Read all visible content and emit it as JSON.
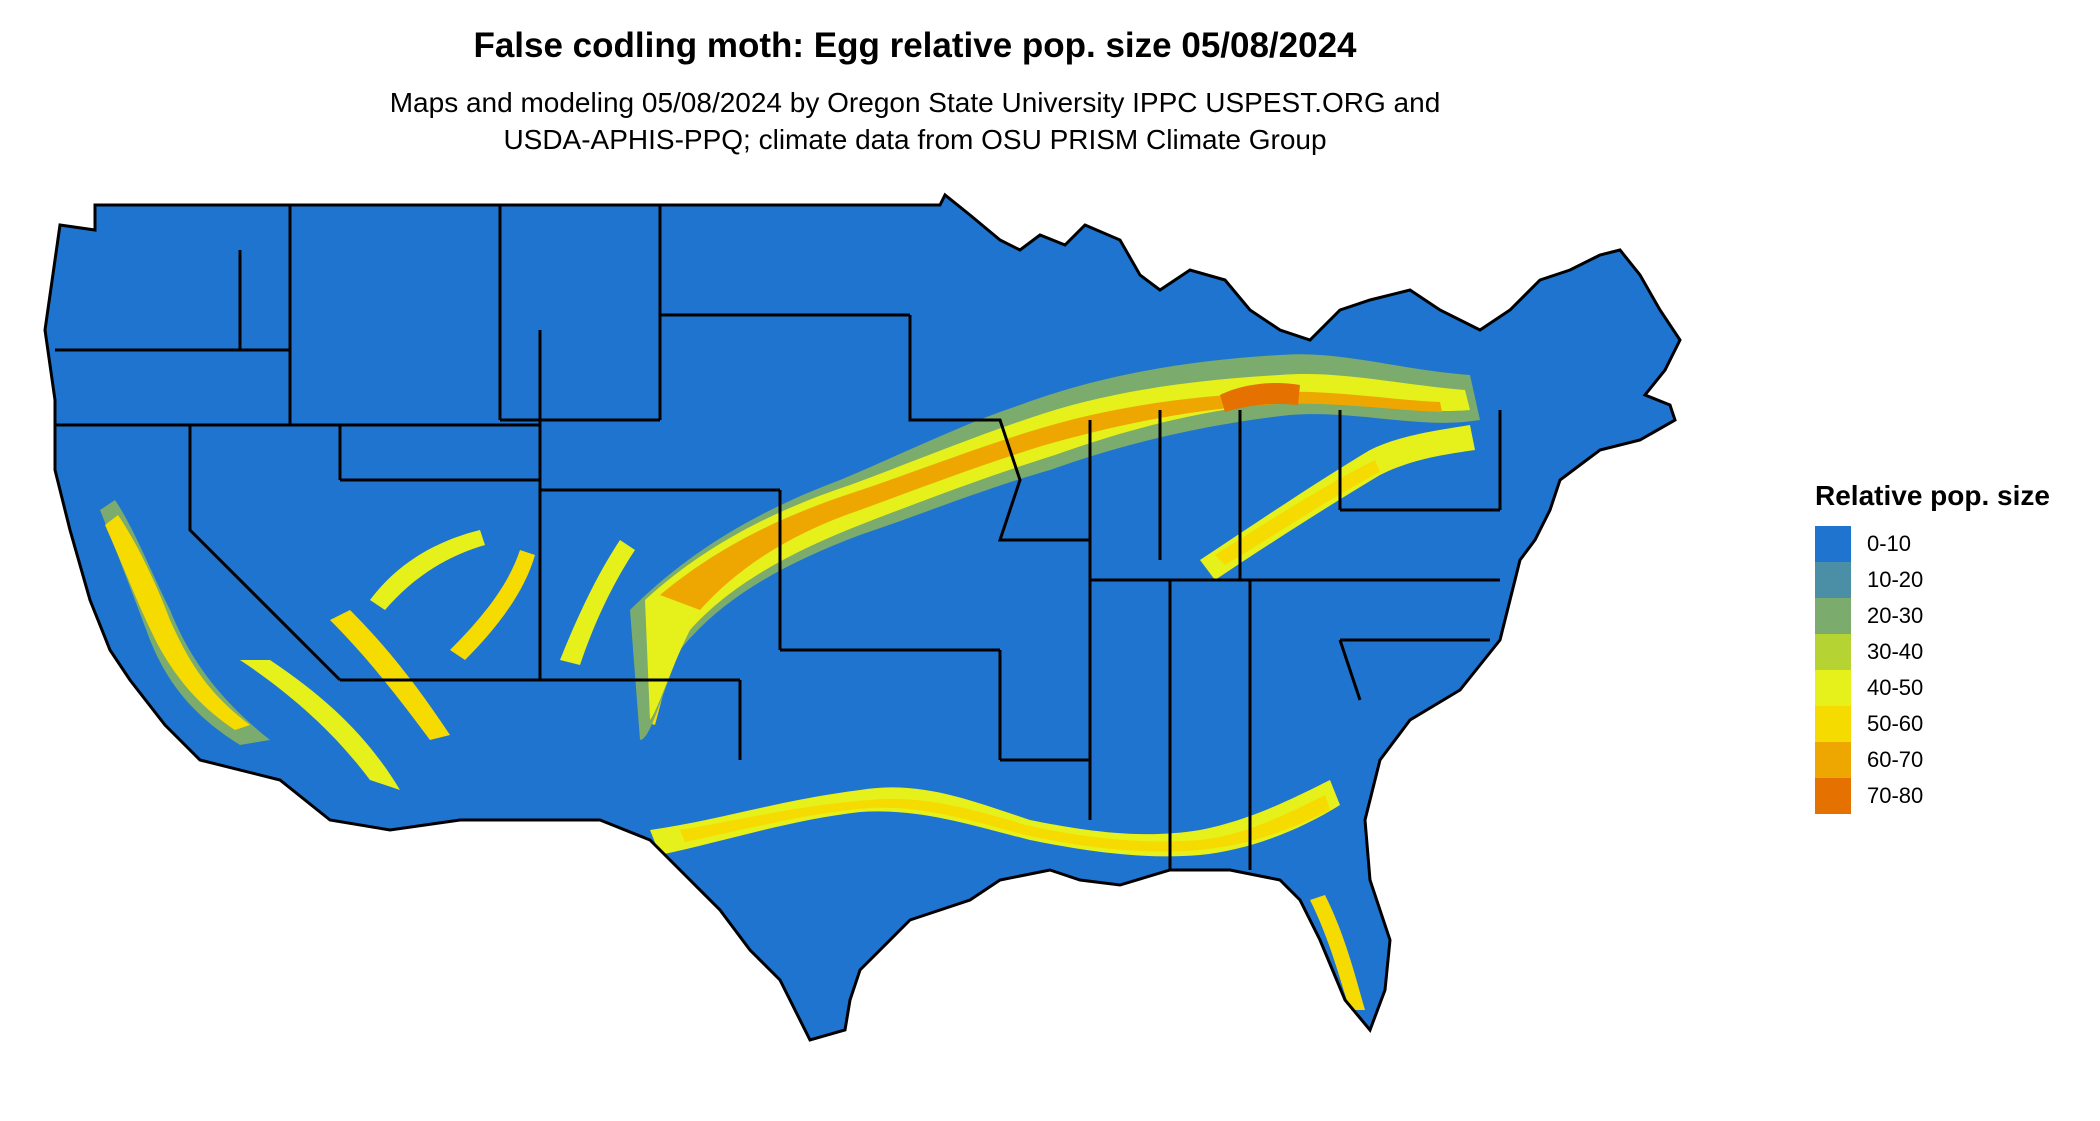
{
  "title": "False codling moth: Egg relative pop. size 05/08/2024",
  "subtitle_line1": "Maps and modeling 05/08/2024 by Oregon State University IPPC USPEST.ORG and",
  "subtitle_line2": "USDA-APHIS-PPQ; climate data from OSU PRISM Climate Group",
  "legend": {
    "title": "Relative pop. size",
    "items": [
      {
        "label": "0-10",
        "color": "#1f74cf"
      },
      {
        "label": "10-20",
        "color": "#4a8fa6"
      },
      {
        "label": "20-30",
        "color": "#7bab6d"
      },
      {
        "label": "30-40",
        "color": "#b6d334"
      },
      {
        "label": "40-50",
        "color": "#e6f01a"
      },
      {
        "label": "50-60",
        "color": "#f6db00"
      },
      {
        "label": "60-70",
        "color": "#eea700"
      },
      {
        "label": "70-80",
        "color": "#e57100"
      }
    ]
  }
}
